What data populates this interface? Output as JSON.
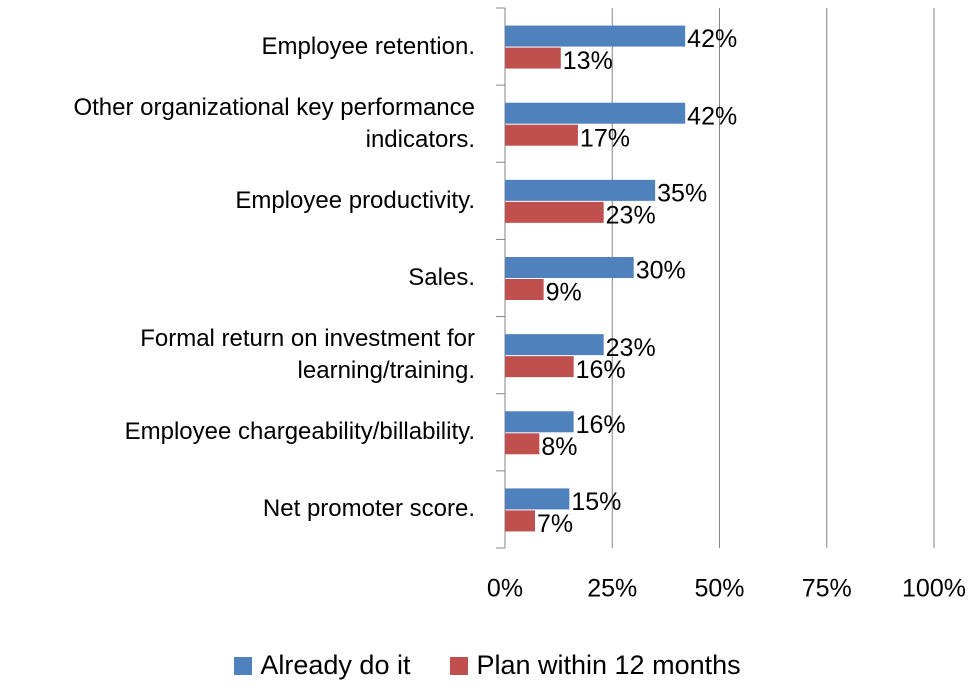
{
  "chart_data": {
    "type": "horizontal_bar",
    "categories": [
      "Employee retention.",
      "Other organizational key performance indicators.",
      "Employee productivity.",
      "Sales.",
      "Formal return on investment for learning/training.",
      "Employee chargeability/billability.",
      "Net promoter score."
    ],
    "series": [
      {
        "name": "Already do it",
        "color": "#4f81bd",
        "values": [
          42,
          42,
          35,
          30,
          23,
          16,
          15
        ],
        "value_labels": [
          "42%",
          "42%",
          "35%",
          "30%",
          "23%",
          "16%",
          "15%"
        ]
      },
      {
        "name": "Plan within 12 months",
        "color": "#c0504d",
        "values": [
          13,
          17,
          23,
          9,
          16,
          8,
          7
        ],
        "value_labels": [
          "13%",
          "17%",
          "23%",
          "9%",
          "16%",
          "8%",
          "7%"
        ]
      }
    ],
    "xlim": [
      0,
      100
    ],
    "xticks": [
      {
        "value": 0,
        "label": "0%"
      },
      {
        "value": 25,
        "label": "25%"
      },
      {
        "value": 50,
        "label": "50%"
      },
      {
        "value": 75,
        "label": "75%"
      },
      {
        "value": 100,
        "label": "100%"
      }
    ],
    "grid": true,
    "legend": "bottom"
  }
}
